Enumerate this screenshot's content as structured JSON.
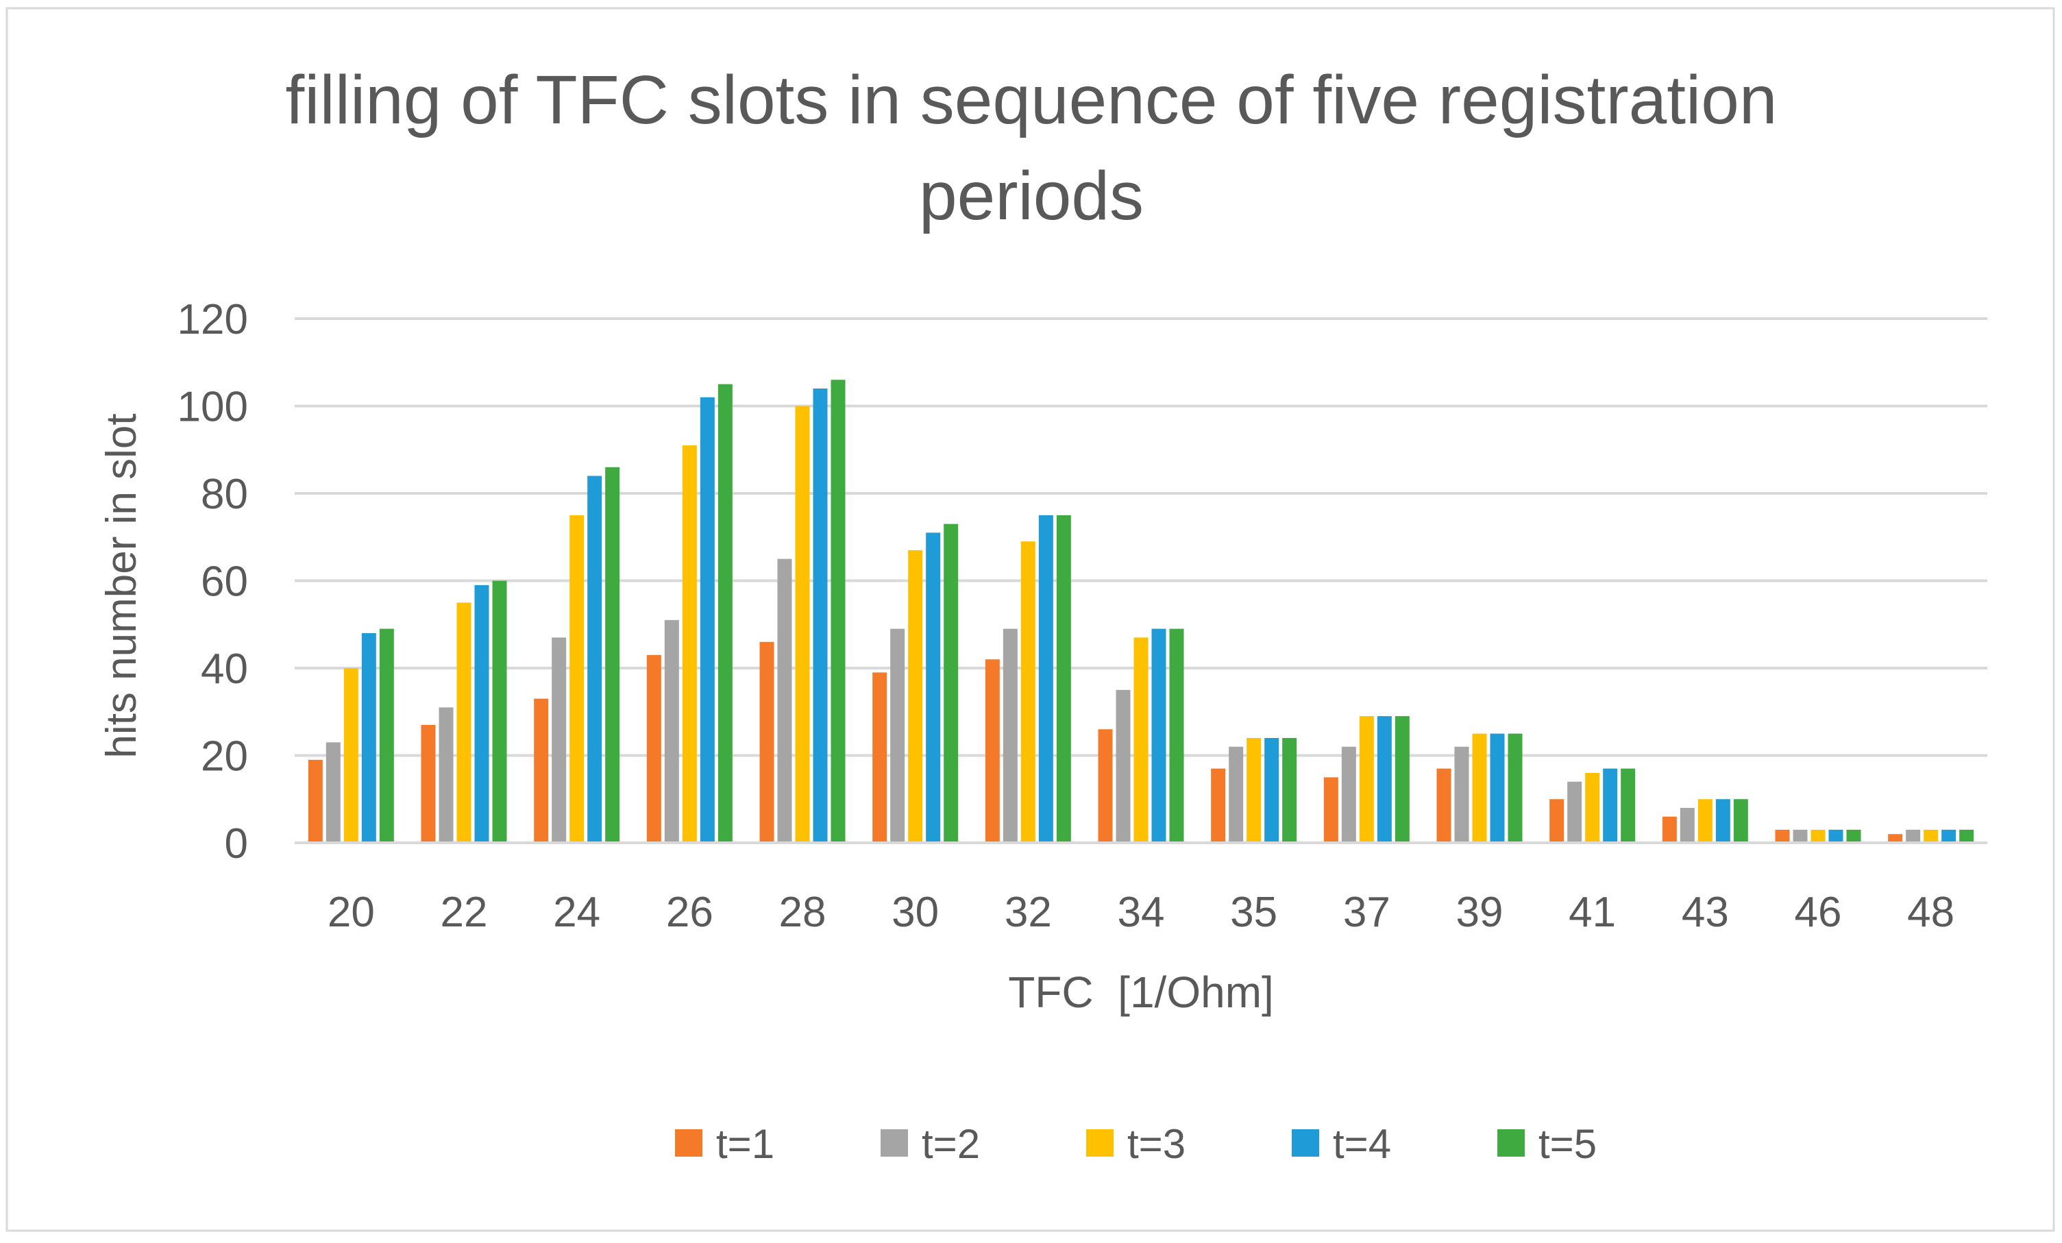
{
  "chart_data": {
    "type": "bar",
    "title": "filling of TFC slots in sequence of five registration periods",
    "title_lines": [
      "filling of TFC slots in sequence of five registration",
      "periods"
    ],
    "xlabel": "TFC  [1/Ohm]",
    "ylabel": "hits number in slot",
    "ylim": [
      0,
      120
    ],
    "yticks": [
      0,
      20,
      40,
      60,
      80,
      100,
      120
    ],
    "grid": true,
    "legend_position": "bottom",
    "categories": [
      "20",
      "22",
      "24",
      "26",
      "28",
      "30",
      "32",
      "34",
      "35",
      "37",
      "39",
      "41",
      "43",
      "46",
      "48"
    ],
    "series": [
      {
        "name": "t=1",
        "color": "#F47A2A",
        "values": [
          19,
          27,
          33,
          43,
          46,
          39,
          42,
          26,
          17,
          15,
          17,
          10,
          6,
          3,
          2
        ]
      },
      {
        "name": "t=2",
        "color": "#A5A5A5",
        "values": [
          23,
          31,
          47,
          51,
          65,
          49,
          49,
          35,
          22,
          22,
          22,
          14,
          8,
          3,
          3
        ]
      },
      {
        "name": "t=3",
        "color": "#FFC000",
        "values": [
          40,
          55,
          75,
          91,
          100,
          67,
          69,
          47,
          24,
          29,
          25,
          16,
          10,
          3,
          3
        ]
      },
      {
        "name": "t=4",
        "color": "#1F9BD7",
        "values": [
          48,
          59,
          84,
          102,
          104,
          71,
          75,
          49,
          24,
          29,
          25,
          17,
          10,
          3,
          3
        ]
      },
      {
        "name": "t=5",
        "color": "#3FAA3F",
        "values": [
          49,
          60,
          86,
          105,
          106,
          73,
          75,
          49,
          24,
          29,
          25,
          17,
          10,
          3,
          3
        ]
      }
    ]
  }
}
